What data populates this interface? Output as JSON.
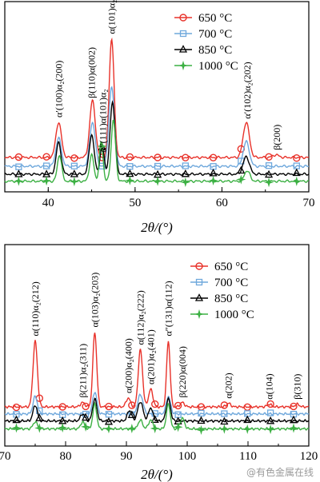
{
  "chart_data": [
    {
      "type": "line",
      "xlabel": "2θ/(°)",
      "xlim": [
        35,
        70
      ],
      "xticks": [
        "40",
        "50",
        "60",
        "70"
      ],
      "tick_values": [
        40,
        50,
        60,
        70
      ],
      "legend_position": "top-right",
      "series": [
        {
          "name": "650 °C",
          "color": "#e8322a",
          "marker": "circle",
          "offset": 0.3,
          "peaks": [
            [
              41.2,
              0.4,
              0.45
            ],
            [
              45.1,
              0.65,
              0.45
            ],
            [
              47.3,
              1.35,
              0.4
            ],
            [
              62.8,
              0.4,
              0.5
            ],
            [
              66.2,
              0.03,
              0.5
            ]
          ]
        },
        {
          "name": "700 °C",
          "color": "#6fa8dc",
          "marker": "square",
          "offset": 0.2,
          "peaks": [
            [
              41.2,
              0.32,
              0.45
            ],
            [
              45.1,
              0.5,
              0.45
            ],
            [
              47.3,
              0.9,
              0.45
            ],
            [
              62.8,
              0.28,
              0.5
            ]
          ]
        },
        {
          "name": "850 °C",
          "color": "#000000",
          "marker": "triangle",
          "offset": 0.11,
          "peaks": [
            [
              41.2,
              0.36,
              0.4
            ],
            [
              45.0,
              0.45,
              0.4
            ],
            [
              46.2,
              0.3,
              0.35
            ],
            [
              47.4,
              0.82,
              0.4
            ],
            [
              62.8,
              0.2,
              0.5
            ]
          ]
        },
        {
          "name": "1000 °C",
          "color": "#3cb043",
          "marker": "star",
          "offset": 0.03,
          "peaks": [
            [
              41.3,
              0.3,
              0.35
            ],
            [
              45.0,
              0.3,
              0.35
            ],
            [
              46.1,
              0.45,
              0.3
            ],
            [
              47.5,
              0.7,
              0.35
            ],
            [
              62.9,
              0.12,
              0.45
            ]
          ]
        }
      ],
      "annotations": [
        {
          "text": "α′(100)α₂(200)",
          "x": 41.2
        },
        {
          "text": "β(110)α(002)",
          "x": 45.0
        },
        {
          "text": "α″(111)α(101)α₂",
          "x": 46.3
        },
        {
          "text": "α(101)α₂(201)",
          "x": 47.3
        },
        {
          "text": "α′(102)α₂(202)",
          "x": 62.9
        },
        {
          "text": "β(200)",
          "x": 66.3
        }
      ]
    },
    {
      "type": "line",
      "xlabel": "2θ/(°)",
      "xlim": [
        70,
        120
      ],
      "xticks": [
        "70",
        "80",
        "90",
        "100",
        "110",
        "120"
      ],
      "tick_values": [
        70,
        80,
        90,
        100,
        110,
        120
      ],
      "legend_position": "top-right",
      "series": [
        {
          "name": "650 °C",
          "color": "#e8322a",
          "marker": "circle",
          "offset": 0.3,
          "peaks": [
            [
              75.0,
              0.75,
              0.5
            ],
            [
              82.8,
              0.05,
              0.5
            ],
            [
              84.8,
              0.85,
              0.45
            ],
            [
              90.3,
              0.1,
              0.5
            ],
            [
              92.3,
              0.65,
              0.5
            ],
            [
              94.0,
              0.2,
              0.5
            ],
            [
              96.9,
              0.75,
              0.4
            ],
            [
              99.2,
              0.05,
              0.5
            ],
            [
              106.8,
              0.04,
              0.5
            ],
            [
              113.5,
              0.03,
              0.5
            ],
            [
              118.1,
              0.03,
              0.5
            ]
          ]
        },
        {
          "name": "700 °C",
          "color": "#6fa8dc",
          "marker": "square",
          "offset": 0.22,
          "peaks": [
            [
              75.0,
              0.2,
              0.5
            ],
            [
              84.8,
              0.25,
              0.5
            ],
            [
              92.3,
              0.22,
              0.6
            ],
            [
              96.9,
              0.2,
              0.5
            ]
          ]
        },
        {
          "name": "850 °C",
          "color": "#000000",
          "marker": "triangle",
          "offset": 0.14,
          "peaks": [
            [
              75.0,
              0.18,
              0.5
            ],
            [
              82.8,
              0.08,
              0.5
            ],
            [
              84.8,
              0.25,
              0.5
            ],
            [
              90.5,
              0.12,
              0.5
            ],
            [
              92.3,
              0.22,
              0.6
            ],
            [
              94.0,
              0.15,
              0.5
            ],
            [
              96.9,
              0.25,
              0.5
            ]
          ]
        },
        {
          "name": "1000 °C",
          "color": "#3cb043",
          "marker": "star",
          "offset": 0.05,
          "peaks": [
            [
              75.0,
              0.08,
              0.5
            ],
            [
              82.8,
              0.08,
              0.45
            ],
            [
              84.8,
              0.28,
              0.45
            ],
            [
              92.3,
              0.1,
              0.5
            ],
            [
              94.0,
              0.1,
              0.5
            ],
            [
              96.9,
              0.28,
              0.45
            ],
            [
              99.2,
              0.12,
              0.5
            ]
          ]
        }
      ],
      "annotations": [
        {
          "text": "α(110)α₂(212)",
          "x": 75.0
        },
        {
          "text": "β(211)α₂(311)",
          "x": 82.8
        },
        {
          "text": "α(103)α₂(203)",
          "x": 84.8
        },
        {
          "text": "α(200)α₂(400)",
          "x": 90.3
        },
        {
          "text": "α(112)α₂(222)",
          "x": 92.3
        },
        {
          "text": "α(201)α₂(401)",
          "x": 94.0
        },
        {
          "text": "α″(131)α(112)",
          "x": 96.9
        },
        {
          "text": "β(220)α(004)",
          "x": 99.2
        },
        {
          "text": "α(202)",
          "x": 106.8
        },
        {
          "text": "α(104)",
          "x": 113.5
        },
        {
          "text": "β(310)",
          "x": 118.1
        }
      ]
    }
  ],
  "watermark": "@有色金属在线"
}
